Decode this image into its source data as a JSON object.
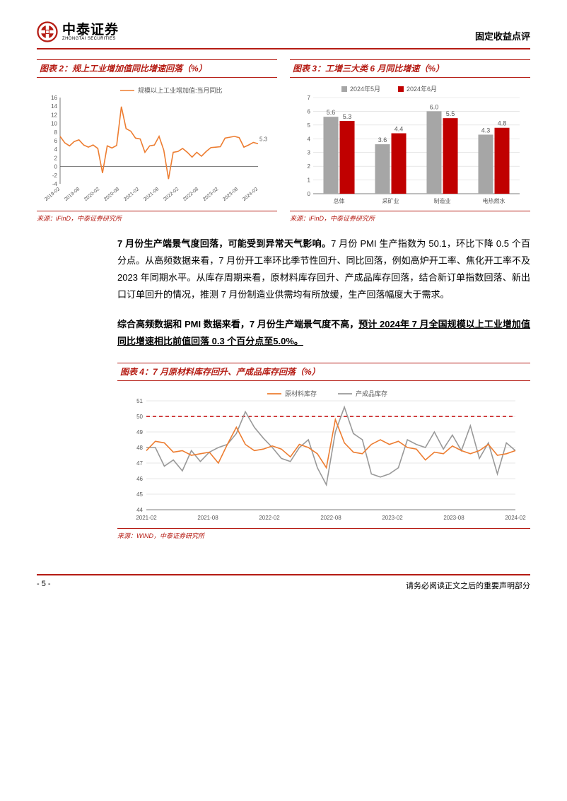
{
  "header": {
    "logo_cn": "中泰证券",
    "logo_en": "ZHONGTAI SECURITIES",
    "doc_type": "固定收益点评"
  },
  "chart2": {
    "title": "图表 2：规上工业增加值同比增速回落（%）",
    "type": "line",
    "legend": "规模以上工业增加值:当月同比",
    "legend_color": "#ed7d31",
    "line_color": "#ed7d31",
    "line_width": 1.6,
    "ylim": [
      -4,
      16
    ],
    "ytick_step": 2,
    "x_labels": [
      "2019-02",
      "2019-08",
      "2020-02",
      "2020-08",
      "2021-02",
      "2021-08",
      "2022-02",
      "2022-08",
      "2023-02",
      "2023-08",
      "2024-02"
    ],
    "values": [
      7,
      5.5,
      4.8,
      5.8,
      6.2,
      5,
      4.5,
      5,
      4.2,
      -1.5,
      4.8,
      4.3,
      4.9,
      13.9,
      8.8,
      8.2,
      6.6,
      6.4,
      3.3,
      4.8,
      5,
      7,
      3.8,
      -2.9,
      3.3,
      3.5,
      4.2,
      3.3,
      2.2,
      3.3,
      2.4,
      3.5,
      4.4,
      4.5,
      4.6,
      6.6,
      6.8,
      7,
      6.7,
      4.5,
      5,
      5.6,
      5.3
    ],
    "end_label": "5.3",
    "grid_color": "#bfbfbf",
    "axis_color": "#595959",
    "source": "来源：iFinD，中泰证券研究所"
  },
  "chart3": {
    "title": "图表 3：工增三大类 6 月同比增速（%）",
    "type": "bar",
    "legend_a": "2024年5月",
    "color_a": "#a6a6a6",
    "legend_b": "2024年6月",
    "color_b": "#c00000",
    "categories": [
      "总体",
      "采矿业",
      "制造业",
      "电热燃水"
    ],
    "values_a": [
      5.6,
      3.6,
      6.0,
      4.3
    ],
    "values_b": [
      5.3,
      4.4,
      5.5,
      4.8
    ],
    "ylim": [
      0,
      7
    ],
    "ytick_step": 1,
    "bar_width": 0.36,
    "grid_color": "#d9d9d9",
    "axis_color": "#595959",
    "source": "来源：iFinD，中泰证券研究所"
  },
  "para1": {
    "lead": "7 月份生产端景气度回落，可能受到异常天气影响。",
    "rest": "7 月份 PMI 生产指数为 50.1，环比下降 0.5 个百分点。从高频数据来看，7 月份开工率环比季节性回升、同比回落，例如高炉开工率、焦化开工率不及 2023 年同期水平。从库存周期来看，原材料库存回升、产成品库存回落，结合新订单指数回落、新出口订单回升的情况，推测 7 月份制造业供需均有所放缓，生产回落幅度大于需求。"
  },
  "para2": {
    "plain": "综合高频数据和 PMI 数据来看，7 月份生产端景气度不高，",
    "ul": "预计 2024年 7 月全国规模以上工业增加值同比增速相比前值回落 0.3 个百分点至5.0%。"
  },
  "chart4": {
    "title": "图表 4：7 月原材料库存回升、产成品库存回落（%）",
    "type": "line",
    "legend_a": "原材料库存",
    "color_a": "#ed7d31",
    "legend_b": "产成品库存",
    "color_b": "#999999",
    "line_width": 1.6,
    "ylim": [
      44,
      51
    ],
    "ytick_step": 1,
    "ref_line": 50,
    "ref_color": "#c00000",
    "ref_dash": "5,4",
    "x_labels": [
      "2021-02",
      "2021-08",
      "2022-02",
      "2022-08",
      "2023-02",
      "2023-08",
      "2024-02"
    ],
    "series_a": [
      47.8,
      48.4,
      48.3,
      47.7,
      47.8,
      47.5,
      47.6,
      47.7,
      47.0,
      48.2,
      49.3,
      48.2,
      47.8,
      47.9,
      48.1,
      47.9,
      47.4,
      48.2,
      48.0,
      47.6,
      46.7,
      49.8,
      48.3,
      47.7,
      47.6,
      48.2,
      48.5,
      48.2,
      48.4,
      48.0,
      47.9,
      47.2,
      47.7,
      47.6,
      48.1,
      47.8,
      47.6,
      47.8,
      48.2,
      47.5,
      47.6,
      47.8
    ],
    "series_b": [
      48.0,
      48.0,
      46.8,
      47.2,
      46.5,
      47.8,
      47.1,
      47.7,
      48.0,
      48.2,
      48.9,
      50.3,
      49.3,
      48.6,
      48.0,
      47.3,
      47.1,
      48.0,
      48.5,
      46.7,
      45.6,
      49.0,
      50.6,
      48.9,
      48.5,
      46.3,
      46.1,
      46.3,
      46.7,
      48.5,
      48.2,
      48.0,
      49.0,
      47.9,
      48.8,
      47.8,
      49.4,
      47.3,
      48.3,
      46.3,
      48.3,
      47.8
    ],
    "grid_color": "#d0d0d0",
    "axis_color": "#595959",
    "source": "来源：WIND，中泰证券研究所"
  },
  "footer": {
    "page": "- 5 -",
    "disclaimer": "请务必阅读正文之后的重要声明部分"
  }
}
